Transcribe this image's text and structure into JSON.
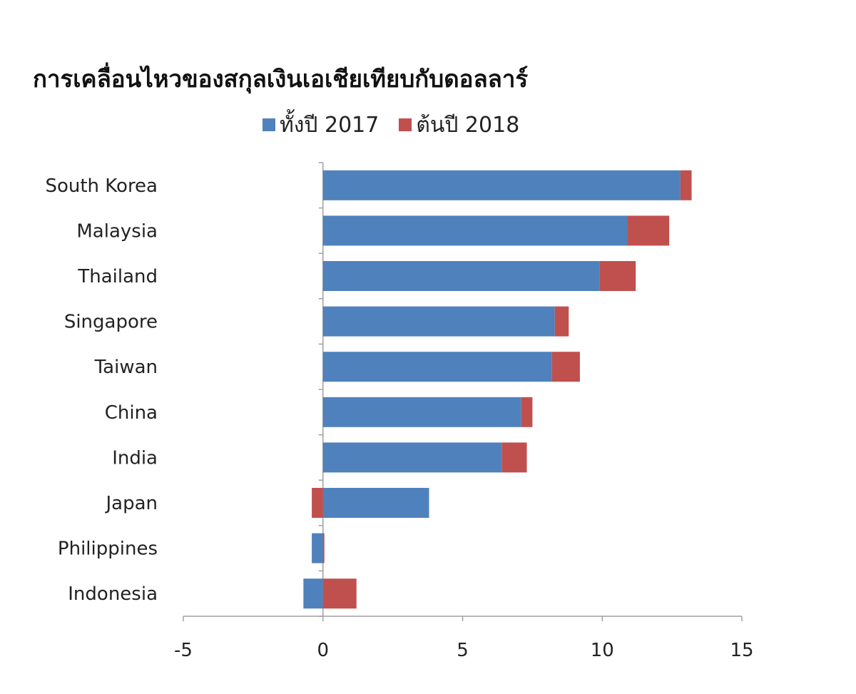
{
  "chart_data": {
    "type": "bar",
    "orientation": "horizontal",
    "stacked": true,
    "title": "การเคลื่อนไหวของสกุลเงินเอเชียเทียบกับดอลลาร์",
    "legend_position": "top",
    "categories": [
      "South Korea",
      "Malaysia",
      "Thailand",
      "Singapore",
      "Taiwan",
      "China",
      "India",
      "Japan",
      "Philippines",
      "Indonesia"
    ],
    "series": [
      {
        "name": "ทั้งปี 2017",
        "color": "#4F81BD",
        "values": [
          12.8,
          10.9,
          9.9,
          8.3,
          8.2,
          7.1,
          6.4,
          3.8,
          -0.4,
          -0.7
        ]
      },
      {
        "name": "ต้นปี 2018",
        "color": "#C0504D",
        "values": [
          0.4,
          1.5,
          1.3,
          0.5,
          1.0,
          0.4,
          0.9,
          -0.4,
          0.05,
          1.2
        ]
      }
    ],
    "xlim": [
      -5,
      15
    ],
    "xticks": [
      -5,
      0,
      5,
      10,
      15
    ],
    "grid": false
  }
}
